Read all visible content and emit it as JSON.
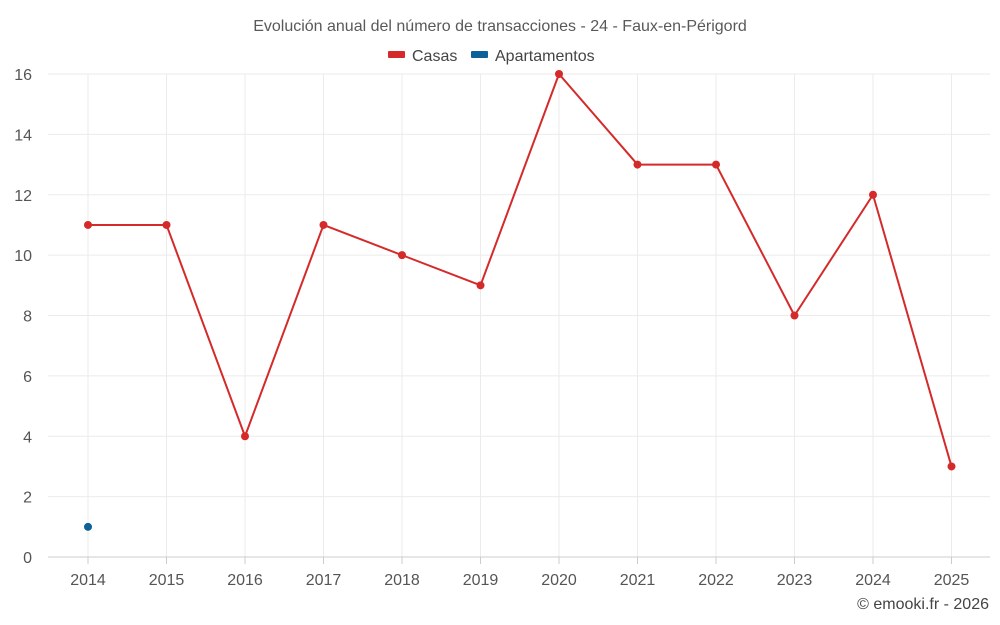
{
  "chart_data": {
    "type": "line",
    "title": "Evolución anual del número de transacciones - 24 - Faux-en-Périgord",
    "categories": [
      "2014",
      "2015",
      "2016",
      "2017",
      "2018",
      "2019",
      "2020",
      "2021",
      "2022",
      "2023",
      "2024",
      "2025"
    ],
    "series": [
      {
        "name": "Casas",
        "color": "#d42a2a",
        "values": [
          11,
          11,
          4,
          11,
          10,
          9,
          16,
          13,
          13,
          8,
          12,
          3
        ]
      },
      {
        "name": "Apartamentos",
        "color": "#0e6196",
        "values": [
          1,
          null,
          null,
          null,
          null,
          null,
          null,
          null,
          null,
          null,
          null,
          null
        ]
      }
    ],
    "y_ticks": [
      "0",
      "2",
      "4",
      "6",
      "8",
      "10",
      "12",
      "14",
      "16"
    ],
    "ylim": [
      0,
      16
    ],
    "xlabel": "",
    "ylabel": "",
    "grid": true,
    "legend_position": "top-center"
  },
  "credit": "© emooki.fr - 2026"
}
